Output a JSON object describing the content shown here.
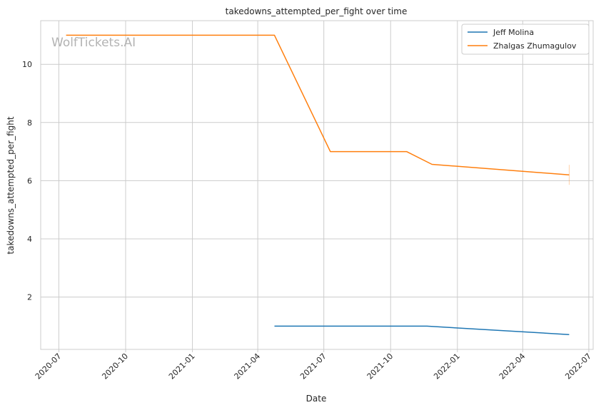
{
  "watermark": "WolfTickets.AI",
  "chart_data": {
    "type": "line",
    "title": "takedowns_attempted_per_fight over time",
    "xlabel": "Date",
    "ylabel": "takedowns_attempted_per_fight",
    "x_ticks": [
      "2020-07",
      "2020-10",
      "2021-01",
      "2021-04",
      "2021-07",
      "2021-10",
      "2022-01",
      "2022-04",
      "2022-07"
    ],
    "y_ticks": [
      2,
      4,
      6,
      8,
      10
    ],
    "xlim": [
      "2020-06-06",
      "2022-07-07"
    ],
    "ylim": [
      0.2,
      11.5
    ],
    "grid": true,
    "legend_position": "top-right",
    "series": [
      {
        "name": "Jeff Molina",
        "color": "#1f77b4",
        "x": [
          "2021-04-24",
          "2021-11-20",
          "2022-06-04"
        ],
        "y": [
          1.0,
          1.0,
          0.71
        ]
      },
      {
        "name": "Zhalgas Zhumagulov",
        "color": "#ff7f0e",
        "x": [
          "2020-07-11",
          "2021-04-24",
          "2021-07-10",
          "2021-10-23",
          "2021-11-27",
          "2022-06-04"
        ],
        "y": [
          11.0,
          11.0,
          7.0,
          7.0,
          6.56,
          6.2
        ]
      }
    ]
  }
}
